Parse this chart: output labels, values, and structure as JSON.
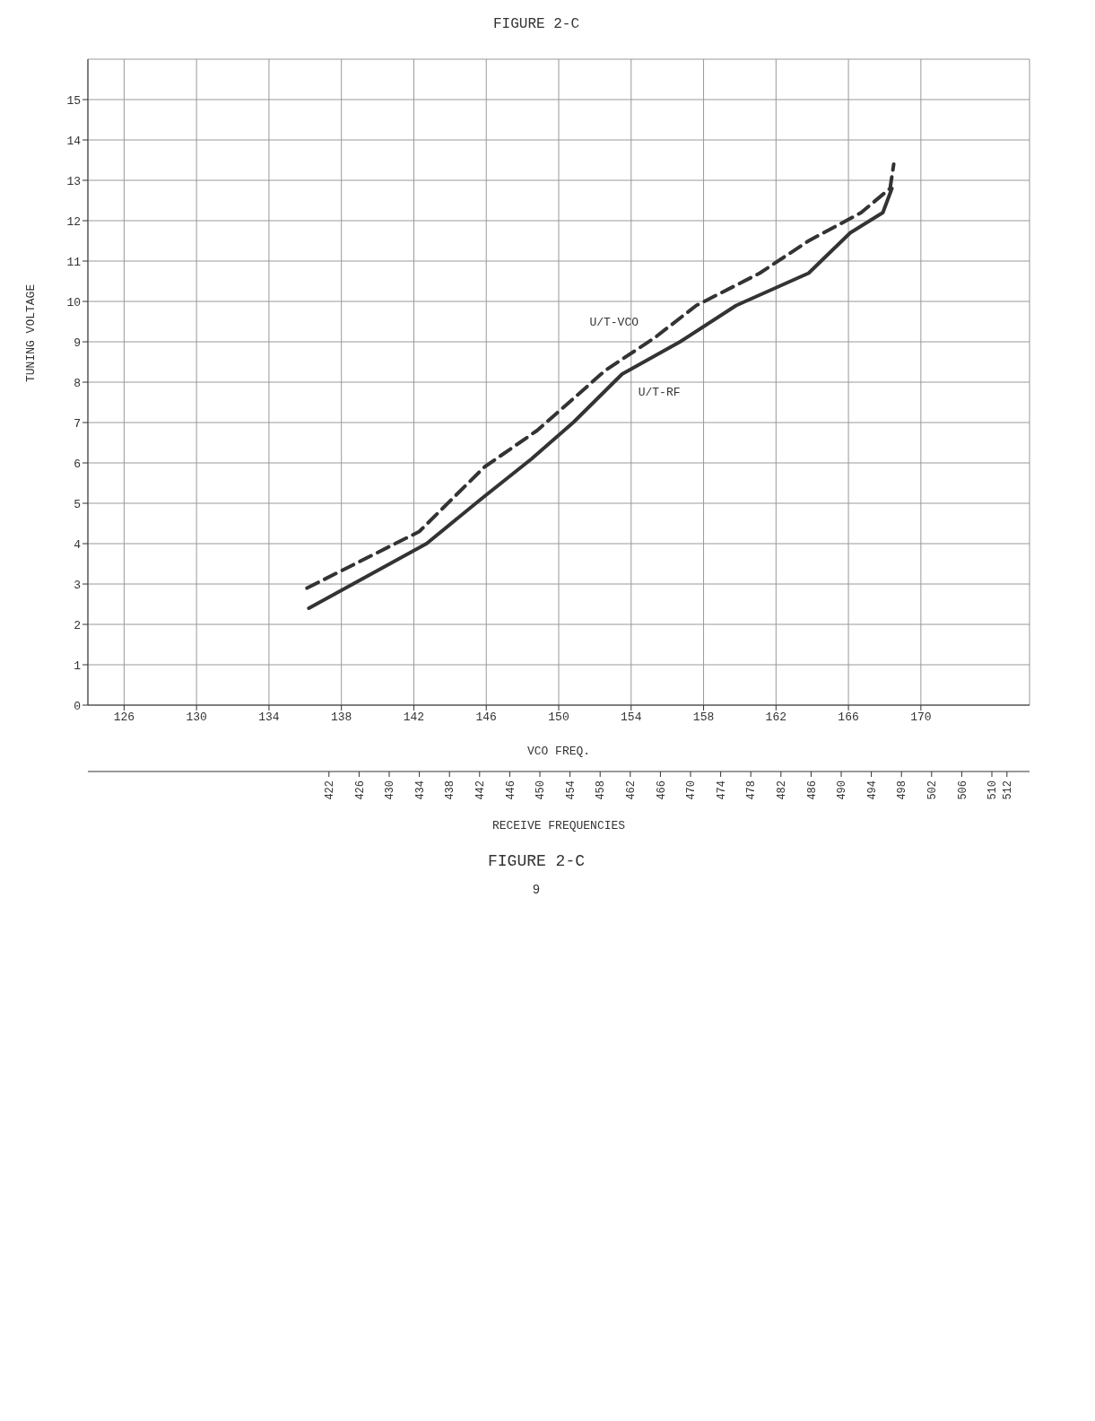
{
  "chart_data": {
    "type": "line",
    "title": "FIGURE 2-C",
    "xlabel": "VCO FREQ.",
    "x2label": "RECEIVE FREQUENCIES",
    "ylabel": "TUNING VOLTAGE",
    "xlim": [
      124,
      176
    ],
    "xticks": [
      126,
      130,
      134,
      138,
      142,
      146,
      150,
      154,
      158,
      162,
      166,
      170
    ],
    "x2lim": [
      390,
      515
    ],
    "x2ticks": [
      422,
      426,
      430,
      434,
      438,
      442,
      446,
      450,
      454,
      458,
      462,
      466,
      470,
      474,
      478,
      482,
      486,
      490,
      494,
      498,
      502,
      506,
      510,
      512
    ],
    "ylim": [
      0,
      16
    ],
    "yticks": [
      0,
      1,
      2,
      3,
      4,
      5,
      6,
      7,
      8,
      9,
      10,
      11,
      12,
      13,
      14,
      15
    ],
    "grid": true,
    "legend": false,
    "marker": "none",
    "series": [
      {
        "name": "U/T-RF",
        "color": "#333333",
        "line_style": "solid",
        "x": [
          136.2,
          142.7,
          145.7,
          148.5,
          150.8,
          153.5,
          156.7,
          159.8,
          163.8,
          166.1,
          167.9,
          168.4
        ],
        "values": [
          2.4,
          4.0,
          5.1,
          6.1,
          7.0,
          8.2,
          9.0,
          9.9,
          10.7,
          11.7,
          12.2,
          12.8
        ]
      },
      {
        "name": "U/T-VCO",
        "color": "#333333",
        "line_style": "dashed",
        "x": [
          136.1,
          142.3,
          145.9,
          148.8,
          152.6,
          155.3,
          157.6,
          161.1,
          163.8,
          166.7,
          168.3,
          168.5
        ],
        "values": [
          2.9,
          4.3,
          5.9,
          6.8,
          8.3,
          9.1,
          9.9,
          10.7,
          11.5,
          12.2,
          12.8,
          13.4
        ]
      }
    ],
    "annotations": [
      "FIGURE 2-C",
      "9"
    ]
  }
}
